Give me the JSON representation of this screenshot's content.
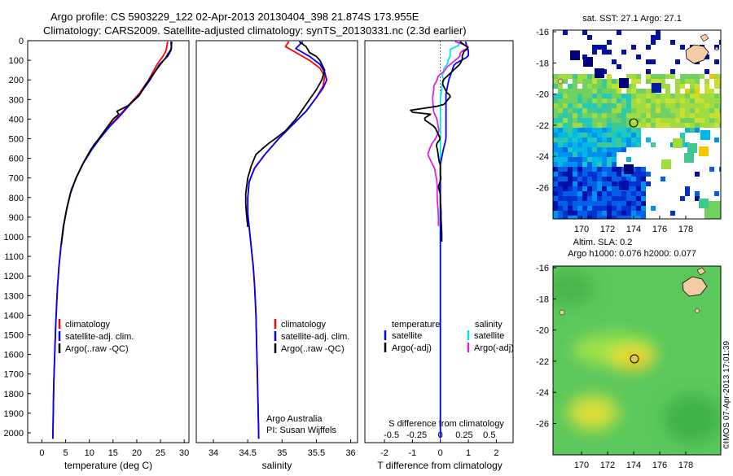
{
  "header": {
    "line1": "Argo profile: CS 5903229_122 02-Apr-2013 20130404_398 21.874S 173.955E",
    "line2": "Climatology: CARS2009. Satellite-adjusted climatology: synTS_20130331.nc (2.3d earlier)"
  },
  "colors": {
    "climatology": "#ff0000",
    "satellite": "#0000ff",
    "argo": "#000000",
    "sal_sat": "#00e5e5",
    "sal_argo": "#e020e0"
  },
  "chart_data": [
    {
      "type": "line",
      "xlabel": "temperature (deg C)",
      "ylabel": "",
      "xlim": [
        -3,
        31
      ],
      "ylim": [
        2050,
        0
      ],
      "xticks": [
        0,
        5,
        10,
        15,
        20,
        25,
        30
      ],
      "yticks": [
        0,
        100,
        200,
        300,
        400,
        500,
        600,
        700,
        800,
        900,
        1000,
        1100,
        1200,
        1300,
        1400,
        1500,
        1600,
        1700,
        1800,
        1900,
        2000
      ],
      "legend": [
        "climatology",
        "satellite-adj. clim.",
        "Argo(..raw -QC)"
      ],
      "series": [
        {
          "name": "climatology",
          "color": "#ff0000",
          "points": [
            [
              26.5,
              5
            ],
            [
              26.2,
              50
            ],
            [
              25.5,
              80
            ],
            [
              24.3,
              120
            ],
            [
              22.5,
              200
            ],
            [
              20.5,
              270
            ],
            [
              18.2,
              330
            ],
            [
              16,
              390
            ],
            [
              14,
              440
            ],
            [
              12,
              500
            ],
            [
              10.3,
              560
            ],
            [
              8.6,
              630
            ],
            [
              7.2,
              700
            ],
            [
              6,
              780
            ],
            [
              5.2,
              860
            ],
            [
              4.5,
              950
            ],
            [
              4,
              1050
            ],
            [
              3.6,
              1150
            ],
            [
              3.3,
              1250
            ],
            [
              3.1,
              1350
            ],
            [
              2.9,
              1450
            ],
            [
              2.7,
              1600
            ],
            [
              2.5,
              1750
            ],
            [
              2.4,
              1900
            ],
            [
              2.3,
              2030
            ]
          ]
        },
        {
          "name": "satellite-adj. clim.",
          "color": "#0000ff",
          "points": [
            [
              27.4,
              5
            ],
            [
              27.2,
              50
            ],
            [
              26.5,
              80
            ],
            [
              24.8,
              120
            ],
            [
              22.8,
              200
            ],
            [
              20.7,
              270
            ],
            [
              18.4,
              330
            ],
            [
              16.2,
              390
            ],
            [
              14.2,
              440
            ],
            [
              12.2,
              500
            ],
            [
              10.4,
              560
            ],
            [
              8.6,
              630
            ],
            [
              7.2,
              700
            ],
            [
              6,
              780
            ],
            [
              5.2,
              860
            ],
            [
              4.5,
              950
            ],
            [
              4,
              1050
            ],
            [
              3.6,
              1150
            ],
            [
              3.3,
              1250
            ],
            [
              3.1,
              1350
            ],
            [
              2.9,
              1450
            ],
            [
              2.7,
              1600
            ],
            [
              2.5,
              1750
            ],
            [
              2.4,
              1900
            ],
            [
              2.3,
              2030
            ]
          ]
        },
        {
          "name": "Argo(..raw -QC)",
          "color": "#000000",
          "points": [
            [
              27.2,
              5
            ],
            [
              27.3,
              40
            ],
            [
              26.8,
              60
            ],
            [
              26,
              90
            ],
            [
              25,
              120
            ],
            [
              23.5,
              170
            ],
            [
              22,
              220
            ],
            [
              20.5,
              280
            ],
            [
              18.3,
              330
            ],
            [
              15.8,
              360
            ],
            [
              16.2,
              375
            ],
            [
              15,
              400
            ],
            [
              13.5,
              450
            ],
            [
              12.6,
              480
            ],
            [
              12,
              500
            ],
            [
              11,
              530
            ],
            [
              10.2,
              560
            ],
            [
              8.8,
              620
            ],
            [
              7.4,
              690
            ],
            [
              6.2,
              760
            ],
            [
              5.3,
              850
            ],
            [
              4.6,
              940
            ],
            [
              4.1,
              1040
            ]
          ]
        }
      ]
    },
    {
      "type": "line",
      "xlabel": "salinity",
      "ylabel": "",
      "xlim": [
        33.75,
        36.1
      ],
      "ylim": [
        2050,
        0
      ],
      "xticks": [
        34,
        34.5,
        35,
        35.5,
        36
      ],
      "legend": [
        "climatology",
        "satellite-adj. clim.",
        "Argo(..raw -QC)"
      ],
      "annotations": [
        "Argo Australia",
        "PI: Susan Wijffels"
      ],
      "series": [
        {
          "name": "climatology",
          "color": "#ff0000",
          "points": [
            [
              35.1,
              5
            ],
            [
              35.05,
              30
            ],
            [
              35.2,
              60
            ],
            [
              35.4,
              100
            ],
            [
              35.55,
              140
            ],
            [
              35.62,
              180
            ],
            [
              35.6,
              230
            ],
            [
              35.5,
              290
            ],
            [
              35.35,
              360
            ],
            [
              35.15,
              430
            ],
            [
              34.95,
              500
            ],
            [
              34.75,
              580
            ],
            [
              34.6,
              650
            ],
            [
              34.52,
              720
            ],
            [
              34.5,
              800
            ],
            [
              34.5,
              880
            ],
            [
              34.52,
              950
            ],
            [
              34.55,
              1050
            ],
            [
              34.58,
              1150
            ],
            [
              34.6,
              1250
            ],
            [
              34.62,
              1400
            ],
            [
              34.63,
              1550
            ],
            [
              34.64,
              1700
            ],
            [
              34.65,
              1850
            ],
            [
              34.66,
              2030
            ]
          ]
        },
        {
          "name": "satellite-adj. clim.",
          "color": "#0000ff",
          "points": [
            [
              35.3,
              5
            ],
            [
              35.2,
              40
            ],
            [
              35.4,
              80
            ],
            [
              35.55,
              120
            ],
            [
              35.62,
              160
            ],
            [
              35.65,
              200
            ],
            [
              35.6,
              240
            ],
            [
              35.5,
              290
            ],
            [
              35.35,
              360
            ],
            [
              35.15,
              430
            ],
            [
              34.95,
              500
            ],
            [
              34.75,
              580
            ],
            [
              34.6,
              650
            ],
            [
              34.52,
              720
            ],
            [
              34.5,
              800
            ],
            [
              34.5,
              880
            ],
            [
              34.52,
              950
            ],
            [
              34.55,
              1050
            ],
            [
              34.58,
              1150
            ],
            [
              34.6,
              1250
            ],
            [
              34.62,
              1400
            ],
            [
              34.63,
              1550
            ],
            [
              34.64,
              1700
            ],
            [
              34.65,
              1850
            ],
            [
              34.66,
              2030
            ]
          ]
        },
        {
          "name": "Argo(..raw -QC)",
          "color": "#000000",
          "points": [
            [
              35.25,
              5
            ],
            [
              35.35,
              30
            ],
            [
              35.4,
              60
            ],
            [
              35.5,
              80
            ],
            [
              35.55,
              100
            ],
            [
              35.62,
              150
            ],
            [
              35.58,
              200
            ],
            [
              35.5,
              250
            ],
            [
              35.4,
              300
            ],
            [
              35.28,
              360
            ],
            [
              35.2,
              400
            ],
            [
              35.05,
              460
            ],
            [
              34.9,
              500
            ],
            [
              34.82,
              520
            ],
            [
              34.75,
              540
            ],
            [
              34.62,
              580
            ],
            [
              34.55,
              640
            ],
            [
              34.5,
              700
            ],
            [
              34.47,
              780
            ],
            [
              34.47,
              830
            ],
            [
              34.48,
              880
            ],
            [
              34.5,
              950
            ]
          ]
        }
      ]
    },
    {
      "type": "line",
      "xlabel": "T difference from climatology",
      "xlabel2": "S difference from climatology",
      "xlim": [
        -2.7,
        2.6
      ],
      "ylim": [
        2050,
        0
      ],
      "xticks": [
        -2,
        -1,
        0,
        1,
        2
      ],
      "xticks_s": [
        "-0.5",
        "-0.25",
        "0",
        "0.25",
        "0.5"
      ],
      "legend_titles": [
        "temperature",
        "salinity"
      ],
      "legend_temperature": [
        "satellite",
        "Argo(-adj)"
      ],
      "legend_salinity": [
        "satellite",
        "Argo(-adj)"
      ]
    }
  ],
  "maps": {
    "top": {
      "title": "sat. SST: 27.1  Argo: 27.1",
      "yticks": [
        "-16",
        "-18",
        "-20",
        "-22",
        "-24",
        "-26"
      ],
      "xticks": [
        "170",
        "172",
        "174",
        "176",
        "178"
      ]
    },
    "bottom": {
      "title1": "Altim. SLA: 0.2",
      "title2": "Argo h1000: 0.076 h2000: 0.077",
      "yticks": [
        "-16",
        "-18",
        "-20",
        "-22",
        "-24",
        "-26"
      ],
      "xticks": [
        "170",
        "172",
        "174",
        "176",
        "178"
      ]
    },
    "credit": "©IMOS 07-Apr-2013 17:01:39"
  }
}
